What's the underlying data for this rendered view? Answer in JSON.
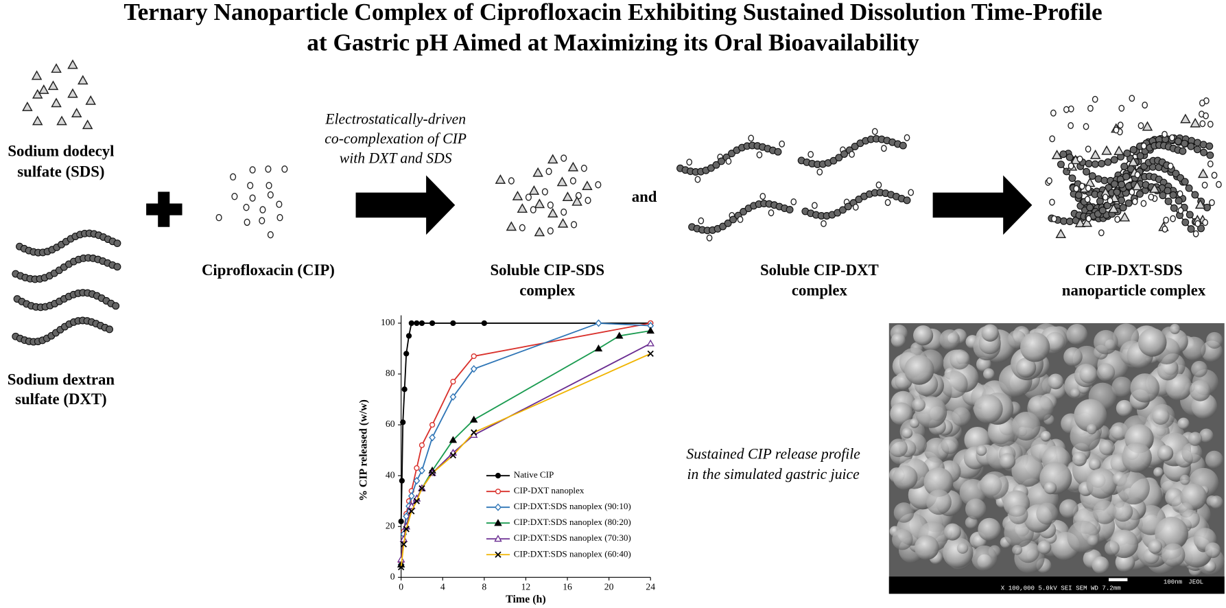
{
  "header": {
    "title": [
      "Ternary Nanoparticle Complex of Ciprofloxacin Exhibiting Sustained Dissolution Time-Profile",
      "at Gastric pH Aimed at Maximizing its Oral Bioavailability"
    ]
  },
  "labels": {
    "sds": [
      "Sodium dodecyl",
      "sulfate (SDS)"
    ],
    "dxt": [
      "Sodium dextran",
      "sulfate (DXT)"
    ],
    "cip": [
      "Ciprofloxacin (CIP)"
    ],
    "process": [
      "Electrostatically-driven",
      "co-complexation of CIP",
      "with DXT and SDS"
    ],
    "and": "and",
    "cip_sds": [
      "Soluble CIP-SDS",
      "complex"
    ],
    "cip_dxt": [
      "Soluble CIP-DXT",
      "complex"
    ],
    "nanoplex": [
      "CIP-DXT-SDS",
      "nanoparticle complex"
    ],
    "release": [
      "Sustained CIP release profile",
      "in the simulated gastric juice"
    ]
  },
  "sem": {
    "scale_bar": "100nm",
    "brand": "JEOL",
    "info": "X 100,000   5.0kV   SEI   SEM   WD 7.2mm"
  },
  "chart_data": {
    "type": "line",
    "x_label": "Time (h)",
    "y_label": "% CIP released  (w/w)",
    "xlim": [
      0,
      24
    ],
    "ylim": [
      0,
      100
    ],
    "xticks": [
      0,
      4,
      8,
      12,
      16,
      20,
      24
    ],
    "yticks": [
      0,
      20,
      40,
      60,
      80,
      100
    ],
    "series": [
      {
        "name": "Native CIP",
        "color": "#000000",
        "marker": "circle-filled",
        "x": [
          0,
          0.08,
          0.17,
          0.33,
          0.5,
          0.75,
          1,
          1.5,
          2,
          3,
          5,
          8,
          24
        ],
        "values": [
          22,
          38,
          61,
          74,
          88,
          95,
          100,
          100,
          100,
          100,
          100,
          100,
          100
        ]
      },
      {
        "name": "CIP-DXT nanoplex",
        "color": "#d9302b",
        "marker": "circle-open",
        "x": [
          0,
          0.25,
          0.5,
          0.75,
          1,
          1.5,
          2,
          3,
          5,
          7,
          24
        ],
        "values": [
          6,
          18,
          25,
          30,
          34,
          43,
          52,
          60,
          77,
          87,
          100
        ]
      },
      {
        "name": "CIP:DXT:SDS nanoplex (90:10)",
        "color": "#2e75b6",
        "marker": "diamond-open",
        "x": [
          0,
          0.25,
          0.5,
          0.75,
          1,
          1.5,
          2,
          3,
          5,
          7,
          19,
          24
        ],
        "values": [
          5,
          17,
          24,
          28,
          32,
          38,
          42,
          55,
          71,
          82,
          100,
          99
        ]
      },
      {
        "name": "CIP:DXT:SDS nanoplex (80:20)",
        "color": "#1a9b50",
        "marker": "triangle-filled",
        "x": [
          0,
          0.25,
          0.5,
          1,
          1.5,
          2,
          3,
          5,
          7,
          19,
          21,
          24
        ],
        "values": [
          5,
          15,
          20,
          28,
          31,
          35,
          42,
          54,
          62,
          90,
          95,
          97
        ]
      },
      {
        "name": "CIP:DXT:SDS nanoplex (70:30)",
        "color": "#6a2c91",
        "marker": "triangle-open",
        "x": [
          0,
          0.25,
          0.5,
          1,
          1.5,
          2,
          3,
          5,
          7,
          24
        ],
        "values": [
          7,
          15,
          20,
          28,
          31,
          35,
          41,
          49,
          56,
          92
        ]
      },
      {
        "name": "CIP:DXT:SDS nanoplex (60:40)",
        "color": "#f0b400",
        "marker": "cross",
        "x": [
          0,
          0.25,
          0.5,
          1,
          1.5,
          2,
          3,
          5,
          7,
          24
        ],
        "values": [
          4,
          13,
          19,
          26,
          30,
          35,
          41,
          48,
          57,
          88
        ]
      }
    ]
  }
}
